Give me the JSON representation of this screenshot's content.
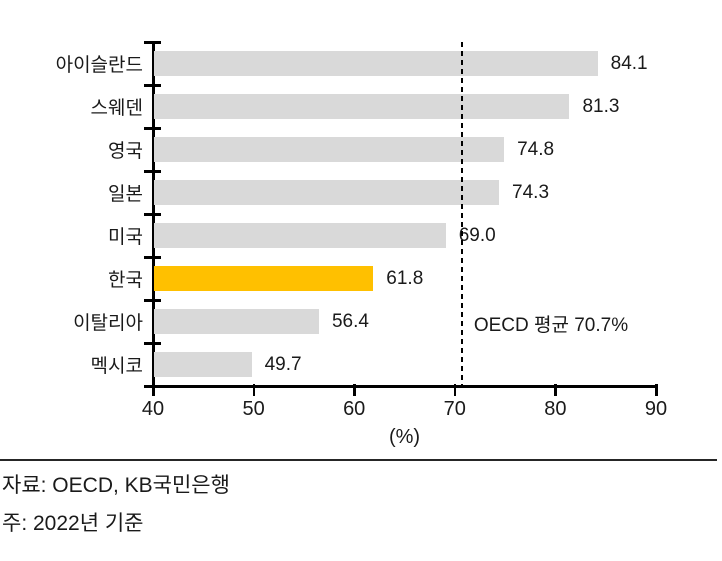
{
  "chart_data": {
    "type": "bar",
    "orientation": "horizontal",
    "categories": [
      "아이슬란드",
      "스웨덴",
      "영국",
      "일본",
      "미국",
      "한국",
      "이탈리아",
      "멕시코"
    ],
    "values": [
      84.1,
      81.3,
      74.8,
      74.3,
      69.0,
      61.8,
      56.4,
      49.7
    ],
    "value_labels": [
      "84.1",
      "81.3",
      "74.8",
      "74.3",
      "69.0",
      "61.8",
      "56.4",
      "49.7"
    ],
    "highlight_index": 5,
    "highlight_category": "한국",
    "xlabel": "(%)",
    "xlim": [
      40,
      90
    ],
    "xticks": [
      "40",
      "50",
      "60",
      "70",
      "80",
      "90"
    ],
    "grid": false,
    "legend": "none",
    "reference_line": {
      "value": 70.7,
      "label": "OECD 평균 70.7%"
    },
    "colors": {
      "bar": "#D9D9D9",
      "highlight": "#FFC000",
      "axis": "#000000",
      "text": "#1A1A1A",
      "reference": "#000000"
    }
  },
  "footer": {
    "source": "자료: OECD, KB국민은행",
    "note": "주: 2022년 기준"
  }
}
